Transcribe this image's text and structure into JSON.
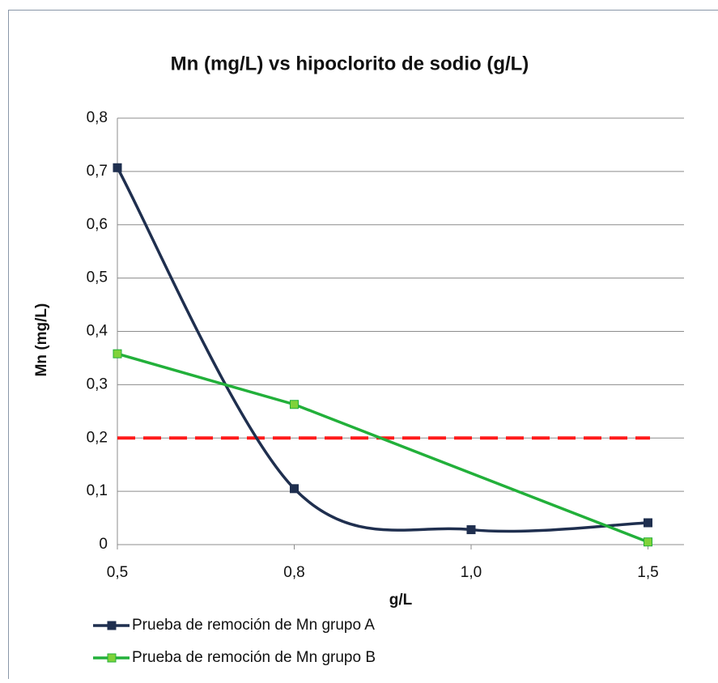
{
  "chart_data": {
    "type": "line",
    "title": "Mn (mg/L) vs hipoclorito de sodio (g/L)",
    "x_label": "g/L",
    "y_label": "Mn (mg/L)",
    "categories": [
      "0,5",
      "0,8",
      "1,0",
      "1,5"
    ],
    "series": [
      {
        "name": "Prueba de remoción de Mn grupo A",
        "color": "#1f2f4f",
        "marker_color": "#1f2f4f",
        "smooth": true,
        "values": [
          0.707,
          0.105,
          0.028,
          0.041
        ]
      },
      {
        "name": "Prueba de remoción de Mn grupo B",
        "color": "#22b03a",
        "marker_color": "#7fd23a",
        "smooth": false,
        "values": [
          0.358,
          0.263,
          null,
          0.005
        ]
      }
    ],
    "span_gaps": true,
    "threshold": {
      "value": 0.2,
      "color": "#ff1a1a"
    },
    "ylim": [
      0,
      0.8
    ],
    "yticks": [
      0,
      {
        "value": 0.1,
        "label": "0,1"
      },
      {
        "value": 0.2,
        "label": "0,2"
      },
      {
        "value": 0.3,
        "label": "0,3"
      },
      {
        "value": 0.4,
        "label": "0,4"
      },
      {
        "value": 0.5,
        "label": "0,5"
      },
      {
        "value": 0.6,
        "label": "0,6"
      },
      {
        "value": 0.7,
        "label": "0,7"
      },
      {
        "value": 0.8,
        "label": "0,8"
      }
    ],
    "grid": true,
    "legend": "bottom"
  }
}
